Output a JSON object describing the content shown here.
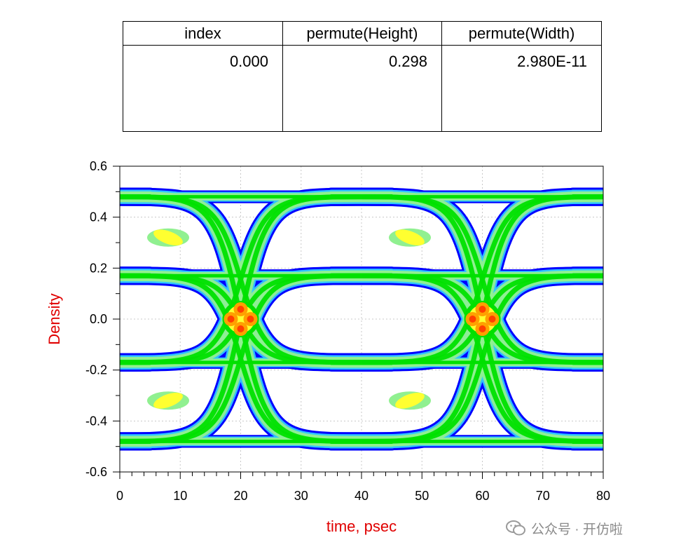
{
  "table": {
    "headers": [
      "index",
      "permute(Height)",
      "permute(Width)"
    ],
    "values": [
      "0.000",
      "0.298",
      "2.980E-11"
    ]
  },
  "chart_data": {
    "type": "heatmap",
    "title": "",
    "xlabel": "time, psec",
    "ylabel": "Density",
    "xlim": [
      0,
      80
    ],
    "ylim": [
      -0.6,
      0.6
    ],
    "x_ticks": [
      "0",
      "10",
      "20",
      "30",
      "40",
      "50",
      "60",
      "70",
      "80"
    ],
    "y_ticks": [
      "0.6",
      "0.4",
      "0.2",
      "0.0",
      "-0.2",
      "-0.4",
      "-0.6"
    ],
    "grid": true,
    "bit_period_psec": 40,
    "crossings_psec": [
      20,
      60
    ],
    "levels": [
      0.48,
      0.17,
      -0.17,
      -0.48
    ],
    "eye_height": 0.298,
    "eye_width_sec": 2.98e-11,
    "colors": {
      "axis_label": "#e00000",
      "density_low": "#0000ff",
      "density_mid_low": "#30c8ff",
      "density_mid": "#00e000",
      "density_mid_high": "#90f090",
      "density_high": "#ffff30",
      "density_peak": "#ff4000"
    }
  },
  "watermark": {
    "text": "公众号 · 开仿啦",
    "icon": "wechat-icon"
  }
}
